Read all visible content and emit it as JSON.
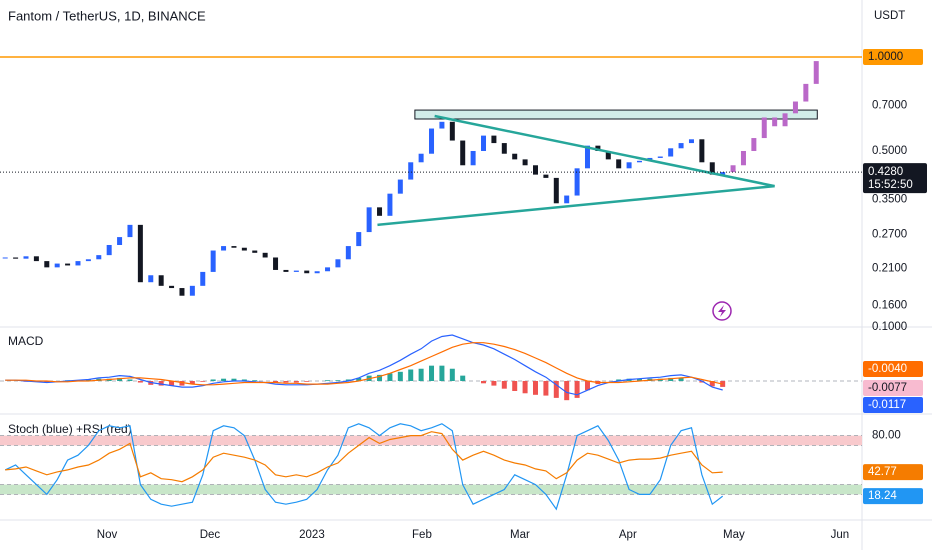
{
  "chart_data": [
    {
      "type": "candle",
      "title": "Fantom / TetherUS, 1D, BINANCE",
      "y_axis_label": "USDT",
      "log_scale": true,
      "ylim": [
        0.1386,
        1.522
      ],
      "yticks": [
        {
          "value": 1,
          "label": "1.0000"
        },
        {
          "value": 0.7,
          "label": "0.7000"
        },
        {
          "value": 0.5,
          "label": "0.5000"
        },
        {
          "value": 0.35,
          "label": "0.3500"
        },
        {
          "value": 0.27,
          "label": "0.2700"
        },
        {
          "value": 0.21,
          "label": "0.2100"
        },
        {
          "value": 0.16,
          "label": "0.1600"
        }
      ],
      "xlim": [
        -0.5,
        82.4
      ],
      "xticks": [
        {
          "value": 9.79,
          "label": "Nov"
        },
        {
          "value": 19.69,
          "label": "Dec"
        },
        {
          "value": 29.5,
          "label": "2023"
        },
        {
          "value": 40.08,
          "label": "Feb"
        },
        {
          "value": 49.5,
          "label": "Mar"
        },
        {
          "value": 59.88,
          "label": "Apr"
        },
        {
          "value": 70.08,
          "label": "May"
        },
        {
          "value": 80.27,
          "label": "Jun"
        }
      ],
      "up_color": "#2962ff",
      "down_color": "#131722",
      "values": [
        0.228,
        0.226,
        0.23,
        0.222,
        0.212,
        0.218,
        0.215,
        0.222,
        0.225,
        0.232,
        0.25,
        0.265,
        0.29,
        0.19,
        0.2,
        0.185,
        0.182,
        0.172,
        0.185,
        0.205,
        0.24,
        0.248,
        0.245,
        0.24,
        0.236,
        0.228,
        0.208,
        0.205,
        0.207,
        0.203,
        0.206,
        0.212,
        0.225,
        0.248,
        0.275,
        0.33,
        0.31,
        0.365,
        0.405,
        0.46,
        0.49,
        0.59,
        0.62,
        0.54,
        0.45,
        0.5,
        0.56,
        0.53,
        0.49,
        0.47,
        0.45,
        0.42,
        0.41,
        0.34,
        0.36,
        0.44,
        0.52,
        0.5,
        0.47,
        0.44,
        0.46,
        0.465,
        0.475,
        0.48,
        0.51,
        0.53,
        0.545,
        0.46,
        0.42,
        0.428
      ],
      "last_label": "0.4280",
      "countdown": "15:52:50",
      "projection": {
        "color": "#ba68c8",
        "x": [
          70,
          71,
          72,
          73,
          74,
          75,
          76,
          77,
          78
        ],
        "values": [
          0.45,
          0.5,
          0.55,
          0.64,
          0.6,
          0.66,
          0.72,
          0.82,
          0.97
        ]
      },
      "hline": {
        "value": 1,
        "color": "#ff9800"
      },
      "zone": {
        "x": [
          39.4,
          78.1
        ],
        "y": [
          0.633,
          0.676
        ],
        "color": "#b2dfdb"
      },
      "trend_color": "#26a69a",
      "trendlines": [
        {
          "x": [
            41.3,
            74
          ],
          "y": [
            0.647,
            0.386
          ]
        },
        {
          "x": [
            35.8,
            74
          ],
          "y": [
            0.29,
            0.386
          ]
        }
      ]
    },
    {
      "type": "macd",
      "title": "MACD",
      "axis_top_label": "0.1000",
      "ylim": [
        -0.0378,
        0.0665
      ],
      "series": [
        {
          "color": "#2962ff",
          "last_label": "-0.0117",
          "values": [
            0.001,
            0.001,
            0,
            -0.001,
            -0.002,
            -0.001,
            0,
            0.001,
            0.002,
            0.004,
            0.005,
            0.007,
            0.006,
            0.002,
            -0.002,
            -0.004,
            -0.006,
            -0.008,
            -0.008,
            -0.006,
            -0.003,
            -0.001,
            0,
            0,
            -0.001,
            -0.002,
            -0.004,
            -0.005,
            -0.005,
            -0.005,
            -0.004,
            -0.003,
            -0.002,
            0,
            0.004,
            0.01,
            0.014,
            0.02,
            0.027,
            0.035,
            0.042,
            0.052,
            0.058,
            0.06,
            0.055,
            0.05,
            0.047,
            0.042,
            0.035,
            0.028,
            0.02,
            0.012,
            0.005,
            -0.005,
            -0.015,
            -0.018,
            -0.012,
            -0.006,
            -0.002,
            0,
            0.002,
            0.003,
            0.004,
            0.005,
            0.007,
            0.008,
            0.005,
            0,
            -0.008,
            -0.0117
          ]
        },
        {
          "color": "#ff6d00",
          "last_label": "-0.0040",
          "values": [
            0.001,
            0.001,
            0.001,
            0,
            0,
            -0.001,
            -0.001,
            0,
            0,
            0.001,
            0.002,
            0.003,
            0.004,
            0.004,
            0.003,
            0.002,
            0,
            -0.002,
            -0.004,
            -0.005,
            -0.005,
            -0.004,
            -0.003,
            -0.002,
            -0.002,
            -0.002,
            -0.002,
            -0.003,
            -0.003,
            -0.004,
            -0.004,
            -0.004,
            -0.003,
            -0.002,
            0,
            0.003,
            0.006,
            0.01,
            0.015,
            0.02,
            0.026,
            0.032,
            0.038,
            0.044,
            0.048,
            0.05,
            0.05,
            0.048,
            0.045,
            0.041,
            0.036,
            0.03,
            0.024,
            0.017,
            0.01,
            0.004,
            0,
            -0.002,
            -0.002,
            -0.002,
            -0.001,
            0,
            0.001,
            0.002,
            0.003,
            0.004,
            0.005,
            0.002,
            -0.001,
            -0.004
          ]
        }
      ],
      "histogram": {
        "up_color": "#26a69a",
        "down_color": "#ef5350",
        "last_label": "-0.0077",
        "values": [
          0,
          0,
          -0.001,
          -0.001,
          -0.002,
          0,
          0.001,
          0.001,
          0.002,
          0.003,
          0.003,
          0.004,
          0.002,
          -0.002,
          -0.005,
          -0.006,
          -0.006,
          -0.006,
          -0.004,
          -0.001,
          0.002,
          0.003,
          0.003,
          0.002,
          0.001,
          0,
          -0.002,
          -0.002,
          -0.002,
          -0.001,
          0,
          0.001,
          0.001,
          0.002,
          0.004,
          0.007,
          0.008,
          0.01,
          0.012,
          0.015,
          0.016,
          0.02,
          0.02,
          0.016,
          0.007,
          0,
          -0.003,
          -0.006,
          -0.01,
          -0.013,
          -0.016,
          -0.018,
          -0.019,
          -0.022,
          -0.025,
          -0.022,
          -0.012,
          -0.004,
          0,
          0.002,
          0.003,
          0.003,
          0.003,
          0.003,
          0.004,
          0.004,
          0,
          -0.002,
          -0.007,
          -0.0077
        ]
      }
    },
    {
      "type": "stoch_rsi",
      "title": "Stoch (blue) +RSI (red)",
      "ylim": [
        0,
        100
      ],
      "yticks": [
        {
          "value": 80,
          "label": "80.00"
        }
      ],
      "bands": [
        {
          "range": [
            70,
            80
          ],
          "color": "#f8c9cc"
        },
        {
          "range": [
            20,
            30
          ],
          "color": "#c8e6c9"
        }
      ],
      "series": [
        {
          "color": "#2196f3",
          "last_label": "18.24",
          "values": [
            45,
            50,
            40,
            30,
            20,
            35,
            55,
            60,
            70,
            85,
            90,
            88,
            90,
            30,
            15,
            10,
            8,
            10,
            12,
            40,
            85,
            90,
            88,
            80,
            55,
            25,
            12,
            10,
            12,
            15,
            25,
            45,
            60,
            88,
            92,
            88,
            80,
            88,
            92,
            90,
            85,
            88,
            92,
            85,
            30,
            10,
            15,
            20,
            25,
            40,
            35,
            30,
            20,
            5,
            40,
            80,
            85,
            90,
            75,
            55,
            25,
            20,
            20,
            35,
            70,
            85,
            88,
            40,
            10,
            18.24
          ]
        },
        {
          "color": "#f57c00",
          "last_label": "42.77",
          "values": [
            45,
            46,
            48,
            44,
            40,
            43,
            45,
            48,
            50,
            55,
            62,
            66,
            72,
            38,
            42,
            36,
            35,
            33,
            38,
            45,
            58,
            62,
            60,
            58,
            55,
            50,
            40,
            38,
            40,
            38,
            42,
            48,
            52,
            62,
            70,
            78,
            72,
            76,
            78,
            80,
            80,
            84,
            82,
            66,
            55,
            60,
            64,
            60,
            55,
            52,
            50,
            46,
            44,
            36,
            42,
            55,
            62,
            60,
            56,
            52,
            55,
            56,
            56,
            57,
            60,
            62,
            64,
            50,
            42,
            42.77
          ]
        }
      ]
    }
  ]
}
